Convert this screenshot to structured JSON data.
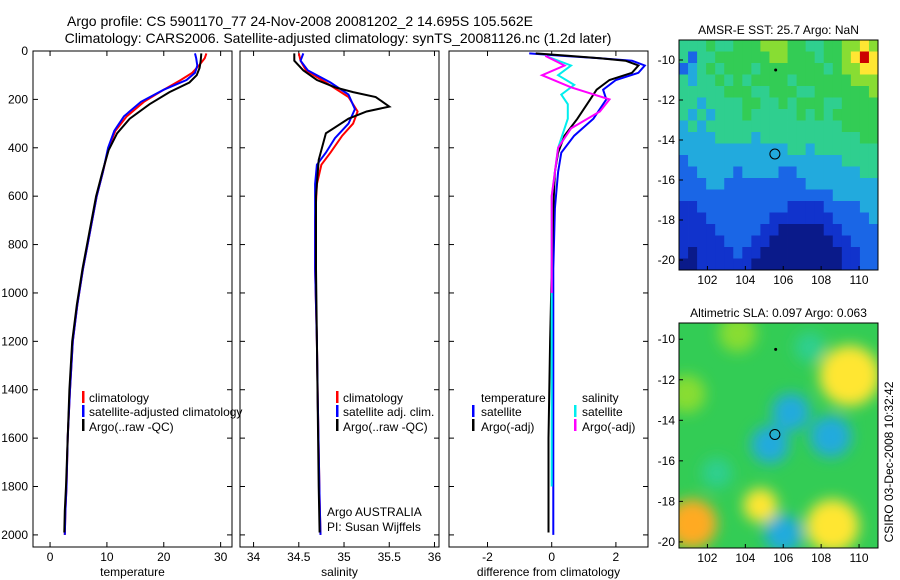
{
  "header": {
    "line1": "Argo profile: CS 5901170_77 24-Nov-2008 20081202_2 14.695S 105.562E",
    "line2": "Climatology: CARS2006. Satellite-adjusted climatology: synTS_20081126.nc (1.2d later)"
  },
  "colors": {
    "climatology": "#ff0000",
    "satellite": "#0000ff",
    "argo": "#000000",
    "sal_sat": "#00eeee",
    "sal_argo": "#ff00ff"
  },
  "chart_data": [
    {
      "type": "line",
      "xlabel": "temperature",
      "xlim": [
        -3,
        32
      ],
      "ylim": [
        2050,
        0
      ],
      "xticks": [
        0,
        10,
        20,
        30
      ],
      "yticks": [
        0,
        200,
        400,
        600,
        800,
        1000,
        1200,
        1400,
        1600,
        1800,
        2000
      ],
      "legend": [
        "climatology",
        "satellite-adjusted climatology",
        "Argo(..raw -QC)"
      ],
      "series": [
        {
          "name": "climatology",
          "color": "#ff0000",
          "x": [
            27.5,
            27.2,
            26.2,
            25,
            23,
            20,
            16.5,
            13.5,
            11.5,
            10.3,
            9.3,
            8.2,
            7,
            5.8,
            4.8,
            4,
            3.5,
            3.1,
            2.9,
            2.7,
            2.6
          ],
          "y": [
            10,
            30,
            60,
            90,
            120,
            160,
            210,
            270,
            330,
            400,
            500,
            600,
            750,
            900,
            1050,
            1200,
            1400,
            1600,
            1800,
            1900,
            2000
          ]
        },
        {
          "name": "satellite-adjusted climatology",
          "color": "#0000ff",
          "x": [
            25.5,
            25.7,
            25.9,
            25.5,
            24,
            20,
            16,
            13,
            11.3,
            10.2,
            9.3,
            8.2,
            7,
            5.8,
            4.8,
            4,
            3.5,
            3.1,
            2.9,
            2.7,
            2.6
          ],
          "y": [
            10,
            30,
            60,
            90,
            120,
            160,
            210,
            270,
            330,
            400,
            500,
            600,
            750,
            900,
            1050,
            1200,
            1400,
            1600,
            1800,
            1900,
            2000
          ]
        },
        {
          "name": "Argo(..raw -QC)",
          "color": "#000000",
          "x": [
            26.6,
            26.5,
            26.3,
            25.8,
            24.5,
            21,
            17.5,
            14,
            11.8,
            10.3,
            9.2,
            8.1,
            6.9,
            5.7,
            4.7,
            3.9,
            3.4,
            3.1,
            2.8,
            2.6,
            2.5
          ],
          "y": [
            10,
            40,
            70,
            100,
            130,
            170,
            220,
            280,
            340,
            410,
            500,
            600,
            750,
            900,
            1050,
            1200,
            1400,
            1600,
            1800,
            1900,
            1990
          ]
        }
      ]
    },
    {
      "type": "line",
      "xlabel": "salinity",
      "xlim": [
        33.85,
        36.05
      ],
      "ylim": [
        2050,
        0
      ],
      "xticks": [
        34,
        34.5,
        35,
        35.5,
        36
      ],
      "legend": [
        "climatology",
        "satellite adj. clim.",
        "Argo(..raw -QC)"
      ],
      "series": [
        {
          "name": "climatology",
          "color": "#ff0000",
          "x": [
            34.5,
            34.52,
            34.58,
            34.8,
            35.05,
            35.15,
            35.1,
            34.98,
            34.85,
            34.75,
            34.7,
            34.68,
            34.68,
            34.7,
            34.71,
            34.72,
            34.73,
            34.74
          ],
          "y": [
            10,
            40,
            80,
            130,
            190,
            250,
            300,
            350,
            420,
            470,
            550,
            700,
            900,
            1200,
            1450,
            1650,
            1850,
            2000
          ]
        },
        {
          "name": "satellite adj. clim.",
          "color": "#0000ff",
          "x": [
            34.55,
            34.52,
            34.6,
            34.85,
            35.05,
            35.12,
            35.05,
            34.9,
            34.8,
            34.7,
            34.68,
            34.68,
            34.68,
            34.7,
            34.71,
            34.72,
            34.73,
            34.74
          ],
          "y": [
            10,
            40,
            80,
            130,
            180,
            240,
            300,
            360,
            420,
            470,
            550,
            700,
            900,
            1200,
            1450,
            1650,
            1850,
            2000
          ]
        },
        {
          "name": "Argo(..raw -QC)",
          "color": "#000000",
          "x": [
            34.45,
            34.45,
            34.55,
            34.7,
            34.9,
            35.1,
            35.35,
            35.5,
            35.25,
            35.05,
            34.8,
            34.72,
            34.69,
            34.69,
            34.7,
            34.71,
            34.72,
            34.73
          ],
          "y": [
            10,
            40,
            80,
            120,
            150,
            170,
            190,
            230,
            250,
            280,
            340,
            450,
            600,
            900,
            1200,
            1500,
            1800,
            1990
          ]
        }
      ]
    },
    {
      "type": "line",
      "xlabel": "difference from climatology",
      "xlim": [
        -3.2,
        3.0
      ],
      "ylim": [
        2050,
        0
      ],
      "xticks": [
        -2,
        0,
        2
      ],
      "legend": [
        {
          "group": "temperature",
          "items": [
            "satellite",
            "Argo(-adj)"
          ]
        },
        {
          "group": "salinity",
          "items": [
            "satellite",
            "Argo(-adj)"
          ]
        }
      ],
      "series": [
        {
          "name": "temperature satellite",
          "color": "#0000ff",
          "x": [
            -0.7,
            0.3,
            1.5,
            2.5,
            2.9,
            2.7,
            2,
            1.6,
            1.7,
            1.3,
            0.7,
            0.3,
            0.2,
            0.1,
            0.05,
            0.05,
            0.05,
            0.05
          ],
          "y": [
            10,
            20,
            30,
            40,
            60,
            90,
            120,
            160,
            200,
            280,
            350,
            420,
            500,
            650,
            900,
            1200,
            1600,
            2000
          ]
        },
        {
          "name": "temperature Argo(-adj)",
          "color": "#000000",
          "x": [
            -0.5,
            0.5,
            1.5,
            2.3,
            2.7,
            2.5,
            1.8,
            1.4,
            1.2,
            0.8,
            0.4,
            0.2,
            0.1,
            0.05,
            0,
            -0.05,
            -0.1,
            -0.1
          ],
          "y": [
            10,
            20,
            30,
            40,
            60,
            90,
            120,
            160,
            200,
            280,
            350,
            420,
            500,
            650,
            900,
            1200,
            1600,
            1990
          ]
        },
        {
          "name": "salinity satellite",
          "color": "#00eeee",
          "x": [
            -0.2,
            0.6,
            0.2,
            0.7,
            0.3,
            0.5,
            0.5,
            0.2,
            0,
            0,
            0
          ],
          "y": [
            20,
            60,
            100,
            140,
            180,
            220,
            280,
            400,
            600,
            1000,
            1800
          ]
        },
        {
          "name": "salinity Argo(-adj)",
          "color": "#ff00ff",
          "x": [
            -0.2,
            0.4,
            -0.3,
            0.6,
            1.8,
            1.5,
            0.6,
            0.2,
            0,
            0
          ],
          "y": [
            20,
            60,
            100,
            150,
            200,
            250,
            320,
            400,
            600,
            1000
          ]
        }
      ]
    },
    {
      "type": "heatmap",
      "title": "AMSR-E SST: 25.7 Argo: NaN",
      "xlim": [
        100.5,
        111
      ],
      "ylim": [
        -20.5,
        -9
      ],
      "xticks": [
        102,
        104,
        106,
        108,
        110
      ],
      "yticks": [
        -10,
        -12,
        -14,
        -16,
        -18,
        -20
      ],
      "colorscale": [
        "#0a1a8a",
        "#1133cc",
        "#1a66e6",
        "#22aadd",
        "#2fcf8f",
        "#33cc55",
        "#88dd33",
        "#ffe633",
        "#ffaa22",
        "#cc0000"
      ],
      "grid": [
        [
          4,
          4,
          4,
          5,
          4,
          4,
          5,
          5,
          5,
          6,
          6,
          6,
          5,
          5,
          4,
          4,
          5,
          5,
          6,
          6,
          7,
          6
        ],
        [
          4,
          2,
          4,
          4,
          5,
          5,
          5,
          5,
          5,
          5,
          6,
          6,
          5,
          5,
          5,
          4,
          5,
          5,
          6,
          7,
          9,
          7
        ],
        [
          2,
          3,
          4,
          5,
          4,
          5,
          5,
          5,
          4,
          5,
          5,
          5,
          5,
          5,
          5,
          5,
          4,
          5,
          6,
          6,
          7,
          7
        ],
        [
          4,
          3,
          4,
          4,
          5,
          4,
          5,
          4,
          5,
          5,
          5,
          5,
          4,
          5,
          5,
          5,
          5,
          5,
          5,
          6,
          6,
          6
        ],
        [
          4,
          4,
          4,
          4,
          4,
          5,
          5,
          5,
          4,
          4,
          5,
          5,
          5,
          4,
          4,
          5,
          5,
          5,
          5,
          5,
          5,
          6
        ],
        [
          4,
          4,
          3,
          4,
          4,
          4,
          4,
          5,
          5,
          4,
          4,
          5,
          4,
          5,
          5,
          5,
          4,
          4,
          5,
          5,
          5,
          5
        ],
        [
          4,
          3,
          4,
          3,
          4,
          4,
          4,
          5,
          4,
          4,
          4,
          4,
          4,
          5,
          4,
          5,
          4,
          5,
          5,
          5,
          5,
          5
        ],
        [
          3,
          4,
          3,
          4,
          4,
          4,
          4,
          4,
          4,
          4,
          4,
          4,
          4,
          4,
          4,
          4,
          4,
          4,
          5,
          5,
          5,
          5
        ],
        [
          3,
          3,
          3,
          3,
          4,
          4,
          4,
          4,
          3,
          4,
          4,
          4,
          4,
          4,
          4,
          4,
          4,
          4,
          4,
          4,
          5,
          5
        ],
        [
          3,
          3,
          3,
          3,
          3,
          3,
          3,
          3,
          3,
          3,
          3,
          3,
          4,
          4,
          3,
          4,
          4,
          4,
          4,
          4,
          4,
          4
        ],
        [
          2,
          3,
          3,
          3,
          3,
          3,
          3,
          3,
          3,
          3,
          3,
          3,
          3,
          3,
          3,
          3,
          3,
          3,
          4,
          4,
          4,
          4
        ],
        [
          2,
          2,
          3,
          3,
          3,
          3,
          2,
          3,
          3,
          3,
          3,
          2,
          2,
          3,
          3,
          3,
          3,
          3,
          3,
          3,
          4,
          4
        ],
        [
          2,
          2,
          2,
          3,
          3,
          2,
          2,
          2,
          2,
          2,
          2,
          2,
          2,
          2,
          3,
          3,
          3,
          3,
          3,
          3,
          3,
          3
        ],
        [
          2,
          2,
          2,
          2,
          2,
          2,
          2,
          2,
          2,
          2,
          2,
          2,
          2,
          2,
          2,
          2,
          2,
          3,
          3,
          3,
          3,
          3
        ],
        [
          1,
          1,
          2,
          2,
          2,
          2,
          2,
          2,
          2,
          2,
          2,
          2,
          1,
          1,
          1,
          1,
          2,
          2,
          2,
          2,
          3,
          3
        ],
        [
          1,
          1,
          1,
          2,
          2,
          2,
          2,
          2,
          2,
          2,
          1,
          1,
          1,
          1,
          1,
          1,
          1,
          2,
          2,
          2,
          2,
          3
        ],
        [
          1,
          1,
          1,
          1,
          2,
          2,
          2,
          2,
          2,
          1,
          1,
          0,
          0,
          0,
          0,
          0,
          1,
          1,
          2,
          2,
          2,
          2
        ],
        [
          1,
          1,
          1,
          1,
          1,
          2,
          2,
          2,
          1,
          1,
          0,
          0,
          0,
          0,
          0,
          0,
          0,
          1,
          1,
          2,
          2,
          2
        ],
        [
          1,
          0,
          1,
          1,
          1,
          1,
          2,
          1,
          1,
          0,
          0,
          0,
          0,
          0,
          0,
          0,
          0,
          0,
          1,
          1,
          2,
          2
        ],
        [
          0,
          0,
          1,
          1,
          1,
          1,
          1,
          1,
          0,
          0,
          0,
          0,
          0,
          0,
          0,
          0,
          0,
          0,
          1,
          1,
          2,
          2
        ]
      ],
      "markers": [
        {
          "kind": "float-position",
          "x": 105.56,
          "y": -14.7
        },
        {
          "kind": "prior-position",
          "x": 105.6,
          "y": -10.5
        }
      ]
    },
    {
      "type": "heatmap",
      "title": "Altimetric SLA: 0.097 Argo: 0.063",
      "xlim": [
        100.5,
        111
      ],
      "ylim": [
        -20.3,
        -9.2
      ],
      "xticks": [
        102,
        104,
        106,
        108,
        110
      ],
      "yticks": [
        -10,
        -12,
        -14,
        -16,
        -18,
        -20
      ],
      "colorscale": [
        "#0a1a8a",
        "#1133cc",
        "#1a66e6",
        "#22aadd",
        "#2fcf8f",
        "#33cc55",
        "#88dd33",
        "#ffe633",
        "#ffaa22",
        "#cc0000"
      ],
      "blobs": [
        {
          "x": 109.5,
          "y": -11.8,
          "level": 7,
          "r": 1.6
        },
        {
          "x": 101.2,
          "y": -19.1,
          "level": 8,
          "r": 1.3
        },
        {
          "x": 108.6,
          "y": -19.2,
          "level": 7,
          "r": 1.4
        },
        {
          "x": 104.8,
          "y": -18.2,
          "level": 7,
          "r": 0.9
        },
        {
          "x": 100.9,
          "y": -12.7,
          "level": 6,
          "r": 1.0
        },
        {
          "x": 103.6,
          "y": -9.7,
          "level": 6,
          "r": 1.0
        },
        {
          "x": 106.4,
          "y": -13.6,
          "level": 3,
          "r": 1.0
        },
        {
          "x": 105.3,
          "y": -15.2,
          "level": 3,
          "r": 1.0
        },
        {
          "x": 108.5,
          "y": -14.8,
          "level": 3,
          "r": 1.1
        },
        {
          "x": 106.0,
          "y": -19.6,
          "level": 3,
          "r": 1.0
        },
        {
          "x": 102.5,
          "y": -16.6,
          "level": 4,
          "r": 0.8
        },
        {
          "x": 107.4,
          "y": -10.4,
          "level": 4,
          "r": 0.8
        }
      ],
      "base_level": 5,
      "markers": [
        {
          "kind": "float-position",
          "x": 105.56,
          "y": -14.7
        },
        {
          "kind": "prior-position",
          "x": 105.6,
          "y": -10.5
        }
      ]
    }
  ],
  "legends": {
    "temp": [
      "climatology",
      "satellite-adjusted climatology",
      "Argo(..raw -QC)"
    ],
    "sal": [
      "climatology",
      "satellite adj. clim.",
      "Argo(..raw -QC)"
    ],
    "diff_header_t": "temperature",
    "diff_header_s": "salinity",
    "diff_t": [
      "satellite",
      "Argo(-adj)"
    ],
    "diff_s": [
      "satellite",
      "Argo(-adj)"
    ]
  },
  "annotation": {
    "line1": "Argo AUSTRALIA",
    "line2": "PI: Susan Wijffels"
  },
  "side_label": "CSIRO 03-Dec-2008 10:32:42"
}
